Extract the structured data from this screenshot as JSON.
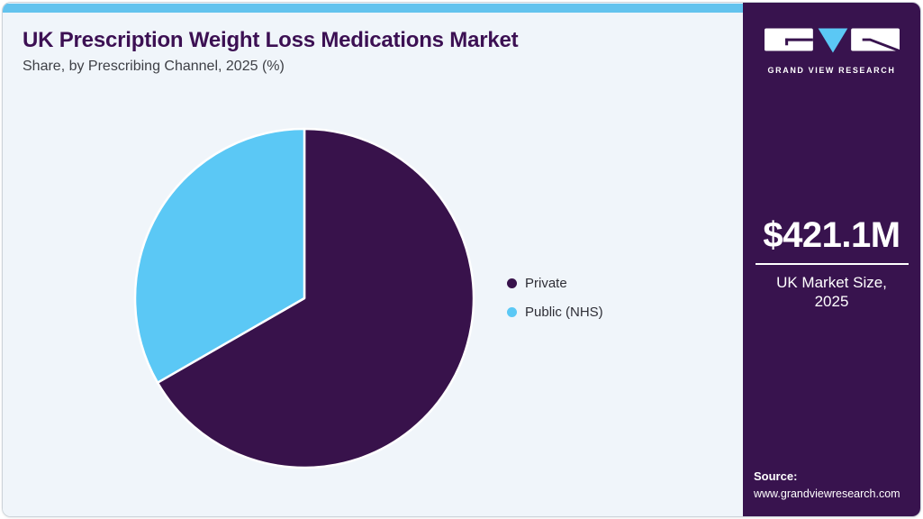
{
  "header": {
    "title": "UK Prescription Weight Loss Medications Market",
    "subtitle": "Share, by Prescribing Channel, 2025 (%)"
  },
  "chart_data": {
    "type": "pie",
    "title": "UK Prescription Weight Loss Medications Market Share, by Prescribing Channel, 2025 (%)",
    "labels": [
      "Private",
      "Public (NHS)"
    ],
    "values": [
      66.7,
      33.3
    ],
    "colors": [
      "#38124b",
      "#5bc8f5"
    ],
    "start_angle_deg": 0,
    "direction": "clockwise",
    "legend_position": "right",
    "data_labels_shown": false
  },
  "legend": {
    "items": [
      {
        "label": "Private"
      },
      {
        "label": "Public (NHS)"
      }
    ]
  },
  "sidebar": {
    "logo_text": "GRAND VIEW RESEARCH",
    "market_value": "$421.1M",
    "market_label_line1": "UK Market Size,",
    "market_label_line2": "2025",
    "source_label": "Source:",
    "source_url": "www.grandviewresearch.com"
  },
  "colors": {
    "accent_bar": "#63c3ee",
    "sidebar_bg": "#38134e",
    "title_text": "#3c1053",
    "main_bg": "#f0f5fa",
    "pie_private": "#38124b",
    "pie_public": "#5bc8f5"
  }
}
